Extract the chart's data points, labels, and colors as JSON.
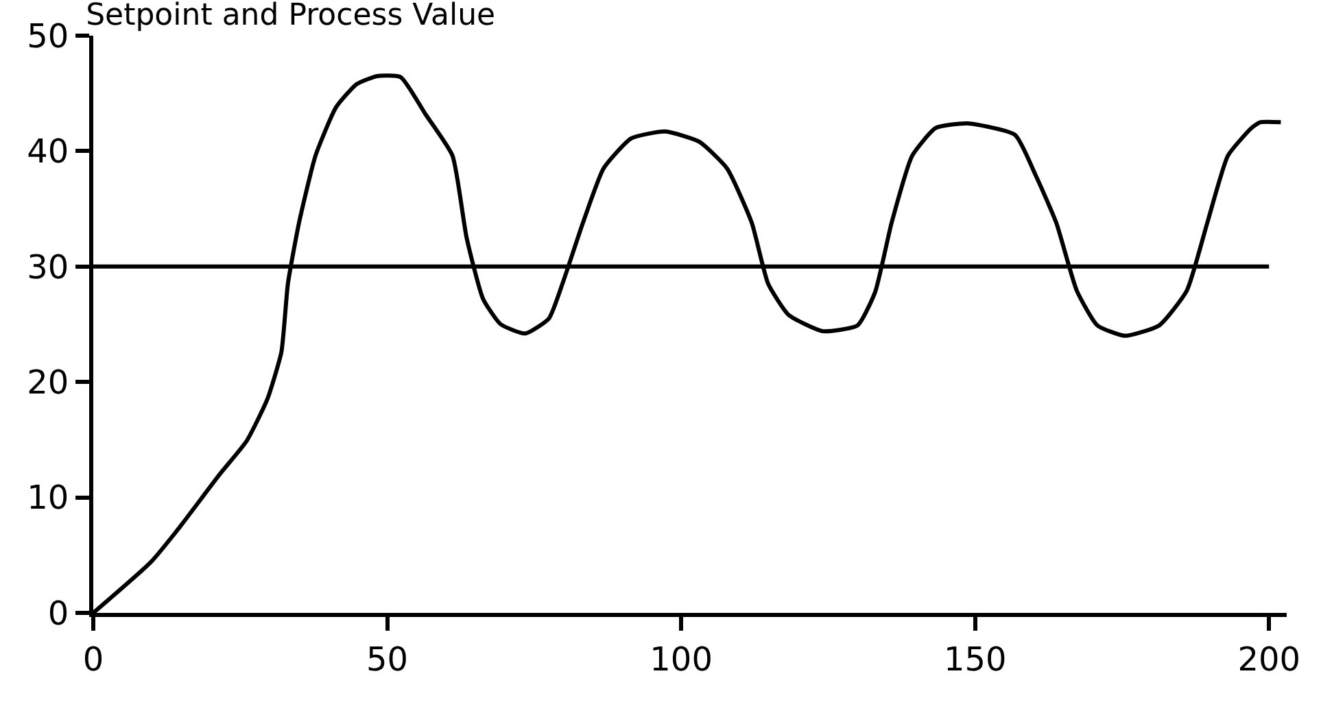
{
  "chart_data": {
    "type": "line",
    "title": "Setpoint and Process Value",
    "series": [
      {
        "color": "#000000",
        "x": [
          0,
          200
        ],
        "values": [
          30,
          30
        ]
      },
      {
        "color": "#000000",
        "x": [
          0,
          9.8,
          14.5,
          21.5,
          26.1,
          29.6,
          32,
          33.1,
          35,
          37.8,
          41.3,
          44.8,
          48.3,
          52.3,
          56.5,
          61.1,
          63.5,
          66.3,
          69.3,
          73.5,
          77.5,
          79.8,
          83.3,
          86.8,
          91.5,
          97.3,
          103.1,
          107.8,
          112,
          114.8,
          118.3,
          124.1,
          130,
          133,
          135.8,
          139.3,
          143.3,
          148.7,
          156.8,
          160.3,
          163.8,
          167.3,
          170.8,
          175.5,
          181.3,
          186,
          189.5,
          193,
          197,
          198.5,
          202
        ],
        "values": [
          0,
          4.4,
          7.3,
          12,
          14.9,
          18.5,
          22.6,
          28.5,
          33.8,
          39.6,
          43.8,
          45.8,
          46.5,
          46.4,
          43.2,
          39.6,
          32.5,
          27.2,
          25,
          24.2,
          25.5,
          28.5,
          33.8,
          38.5,
          41.1,
          41.7,
          40.8,
          38.5,
          33.8,
          28.5,
          25.8,
          24.4,
          24.9,
          27.8,
          33.8,
          39.6,
          42,
          42.4,
          41.4,
          37.9,
          33.8,
          27.9,
          24.9,
          24,
          24.9,
          27.9,
          33.8,
          39.6,
          42,
          42.5,
          42.5
        ]
      }
    ],
    "xlim": [
      0,
      203
    ],
    "xticks": [
      0,
      50,
      100,
      150,
      200
    ],
    "ylim": [
      0,
      50
    ],
    "yticks": [
      0,
      10,
      20,
      30,
      40,
      50
    ],
    "marker": "none",
    "line_style": "solid"
  }
}
